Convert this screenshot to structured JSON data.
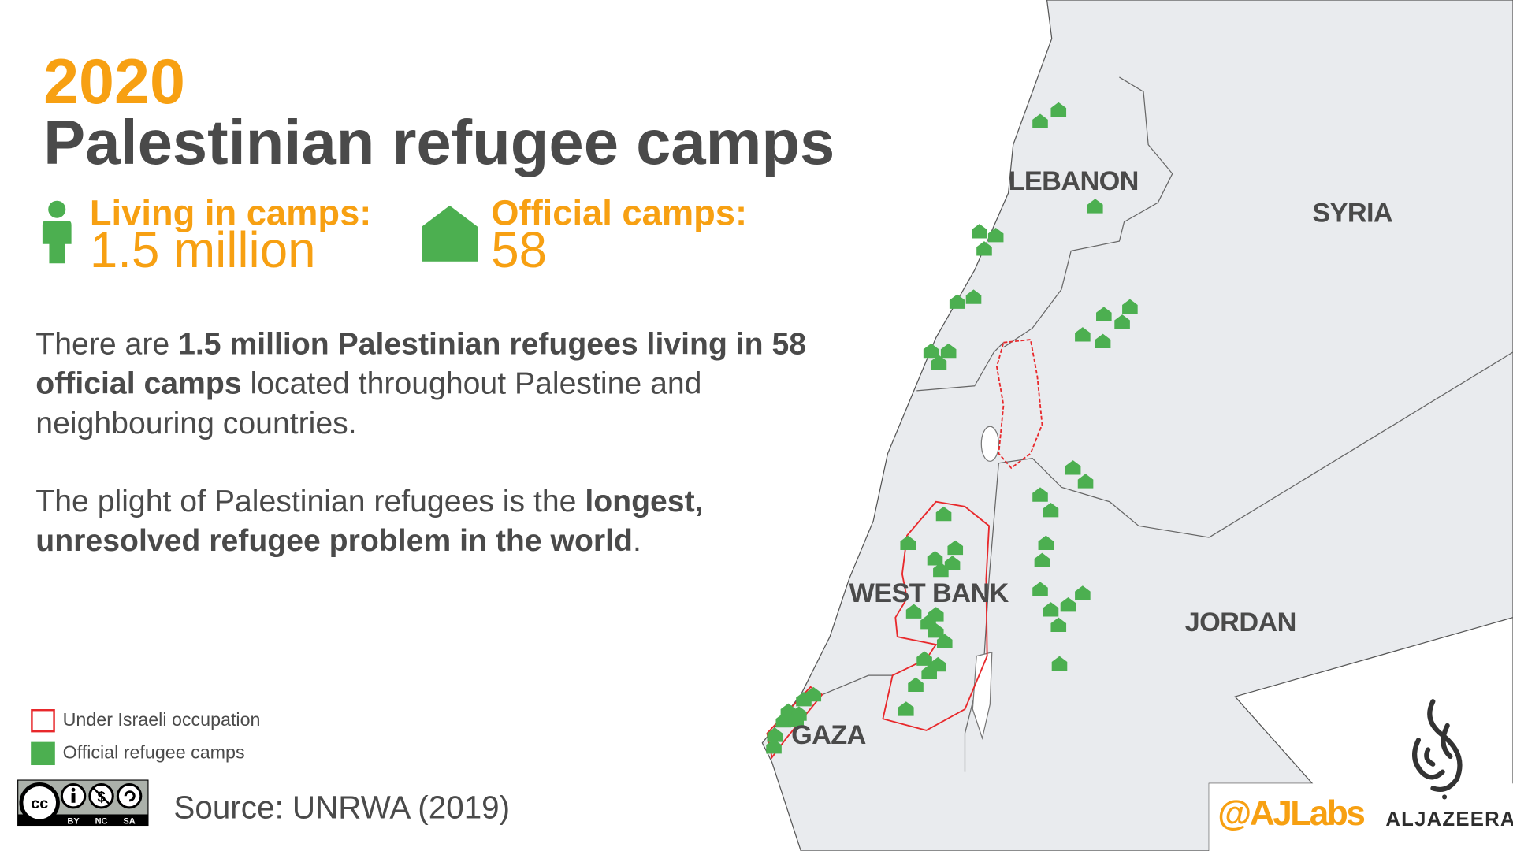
{
  "header": {
    "year": "2020",
    "title": "Palestinian refugee camps"
  },
  "stats": [
    {
      "label": "Living in camps:",
      "value": "1.5 million",
      "icon": "person-icon"
    },
    {
      "label": "Official camps:",
      "value": "58",
      "icon": "house-icon"
    }
  ],
  "body": {
    "p1": {
      "t1": "There are ",
      "b1": "1.5 million Palestinian refugees living in 58 official camps",
      "t2": " located throughout Palestine and neighbouring countries."
    },
    "p2": {
      "t1": "The plight of Palestinian refugees is the ",
      "b1": "longest, unresolved refugee problem in the world",
      "t2": "."
    }
  },
  "legend": [
    {
      "label": "Under Israeli occupation",
      "color": "#e8282b"
    },
    {
      "label": "Official refugee camps",
      "color": "#4caf50"
    }
  ],
  "map_labels": {
    "lebanon": "LEBANON",
    "syria": "SYRIA",
    "jordan": "JORDAN",
    "west_bank": "WEST BANK",
    "gaza": "GAZA"
  },
  "license": {
    "badge": "CC BY NC SA",
    "by": "BY",
    "nc": "NC",
    "sa": "SA"
  },
  "source": "Source: UNRWA (2019)",
  "branding": {
    "handle": "@AJLabs",
    "logo": "ALJAZEERA"
  },
  "colors": {
    "accent": "#f7a012",
    "camp": "#4caf50",
    "occupation": "#e8282b",
    "land": "#e9ebee",
    "text": "#4a4a4a"
  }
}
